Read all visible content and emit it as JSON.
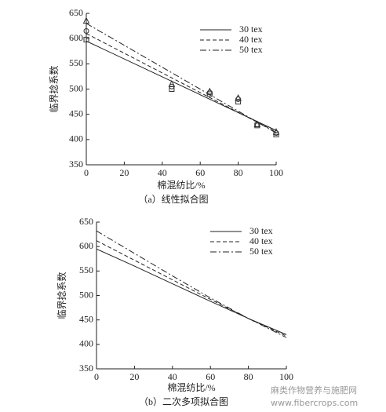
{
  "chart_data": [
    {
      "type": "line",
      "caption": "（a）线性拟合图",
      "xlabel": "棉混纺比/%",
      "ylabel": "临界捻系数",
      "xlim": [
        0,
        100
      ],
      "ylim": [
        350,
        650
      ],
      "xticks": [
        0,
        20,
        40,
        60,
        80,
        100
      ],
      "yticks": [
        350,
        400,
        450,
        500,
        550,
        600,
        650
      ],
      "series": [
        {
          "name": "30 tex",
          "color": "#222222",
          "style": "solid",
          "marker": "square",
          "fit_x": [
            0,
            100
          ],
          "fit_values": [
            595,
            418
          ],
          "x": [
            0,
            45,
            65,
            80,
            90,
            100
          ],
          "values": [
            598,
            500,
            490,
            475,
            428,
            410
          ]
        },
        {
          "name": "40 tex",
          "color": "#222222",
          "style": "dashed",
          "marker": "circle",
          "fit_x": [
            0,
            100
          ],
          "fit_values": [
            610,
            415
          ],
          "x": [
            0,
            45,
            65,
            80,
            90,
            100
          ],
          "values": [
            615,
            505,
            493,
            480,
            430,
            413
          ]
        },
        {
          "name": "50 tex",
          "color": "#222222",
          "style": "dashdot",
          "marker": "triangle",
          "fit_x": [
            0,
            100
          ],
          "fit_values": [
            630,
            413
          ],
          "x": [
            0,
            45,
            65,
            80,
            90,
            100
          ],
          "values": [
            635,
            510,
            495,
            482,
            430,
            415
          ]
        }
      ]
    },
    {
      "type": "line",
      "caption": "（b）二次多项拟合图",
      "xlabel": "棉混纺比/%",
      "ylabel": "临界捻系数",
      "xlim": [
        0,
        100
      ],
      "ylim": [
        350,
        650
      ],
      "xticks": [
        0,
        20,
        40,
        60,
        80,
        100
      ],
      "yticks": [
        350,
        400,
        450,
        500,
        550,
        600,
        650
      ],
      "series": [
        {
          "name": "30 tex",
          "color": "#222222",
          "style": "solid",
          "marker": "square",
          "fit_x": [
            0,
            20,
            40,
            60,
            80,
            100
          ],
          "fit_values": [
            595,
            560,
            524,
            488,
            453,
            420
          ]
        },
        {
          "name": "40 tex",
          "color": "#222222",
          "style": "dashed",
          "marker": "circle",
          "fit_x": [
            0,
            20,
            40,
            60,
            80,
            100
          ],
          "fit_values": [
            612,
            572,
            532,
            492,
            453,
            417
          ]
        },
        {
          "name": "50 tex",
          "color": "#222222",
          "style": "dashdot",
          "marker": "triangle",
          "fit_x": [
            0,
            20,
            40,
            60,
            80,
            100
          ],
          "fit_values": [
            632,
            586,
            540,
            495,
            453,
            414
          ]
        }
      ]
    }
  ],
  "watermark": [
    "麻类作物营养与施肥网",
    "www.fibercrops.com"
  ]
}
